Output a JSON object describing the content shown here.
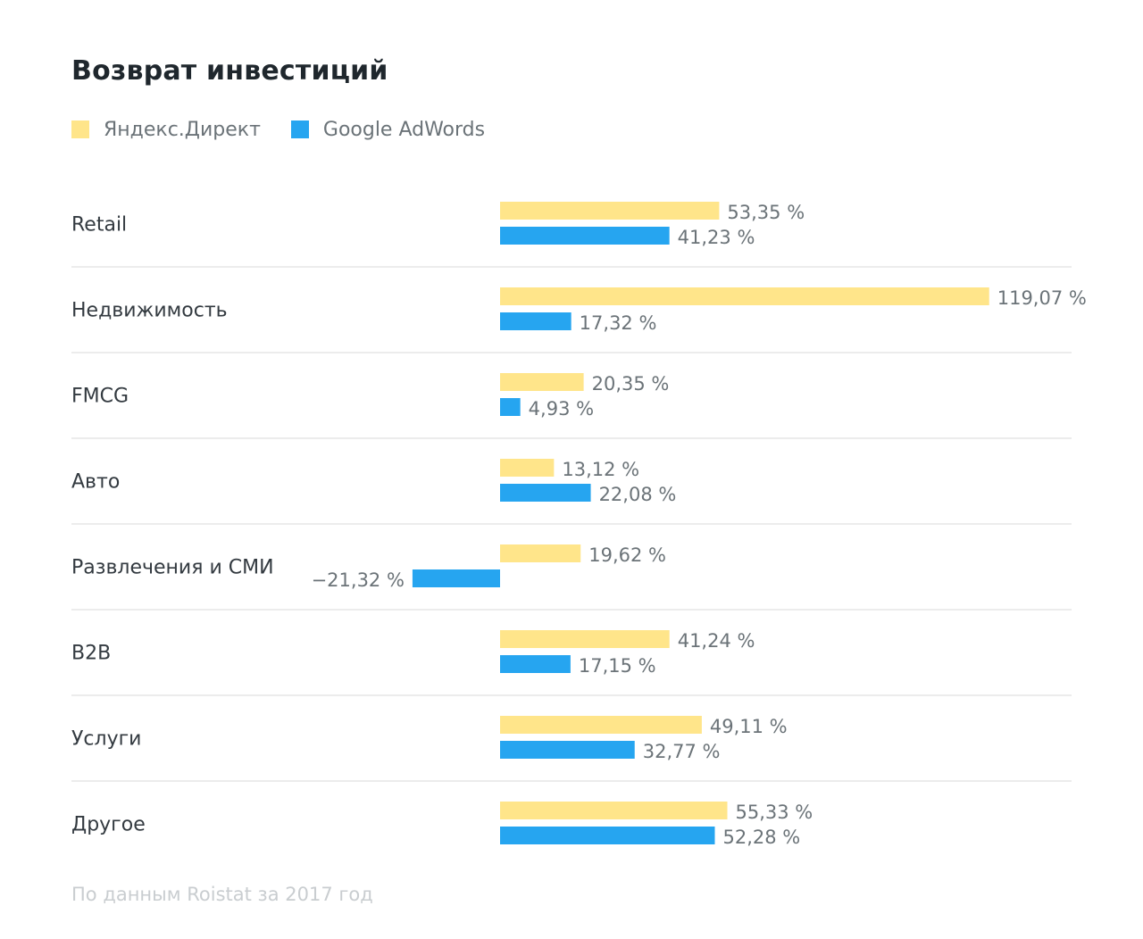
{
  "title": "Возврат инвестиций",
  "footnote": "По данным Roistat за 2017 год",
  "legend": [
    {
      "label": "Яндекс.Директ",
      "color": "#ffe58a"
    },
    {
      "label": "Google AdWords",
      "color": "#26a5f0"
    }
  ],
  "chart_data": {
    "type": "bar",
    "orientation": "horizontal",
    "title": "Возврат инвестиций",
    "categories": [
      "Retail",
      "Недвижимость",
      "FMCG",
      "Авто",
      "Развлечения и СМИ",
      "B2B",
      "Услуги",
      "Другое"
    ],
    "series": [
      {
        "name": "Яндекс.Директ",
        "color": "#ffe58a",
        "values": [
          53.35,
          119.07,
          20.35,
          13.12,
          19.62,
          41.24,
          49.11,
          55.33
        ],
        "labels": [
          "53,35 %",
          "119,07 %",
          "20,35 %",
          "13,12 %",
          "19,62 %",
          "41,24 %",
          "49,11 %",
          "55,33 %"
        ]
      },
      {
        "name": "Google AdWords",
        "color": "#26a5f0",
        "values": [
          41.23,
          17.32,
          4.93,
          22.08,
          -21.32,
          17.15,
          32.77,
          52.28
        ],
        "labels": [
          "41,23 %",
          "17,32 %",
          "4,93 %",
          "22,08 %",
          "−21,32 %",
          "17,15 %",
          "32,77 %",
          "52,28 %"
        ]
      }
    ],
    "xlim": [
      -21.32,
      119.07
    ],
    "grid": false,
    "legend_position": "top-left"
  }
}
